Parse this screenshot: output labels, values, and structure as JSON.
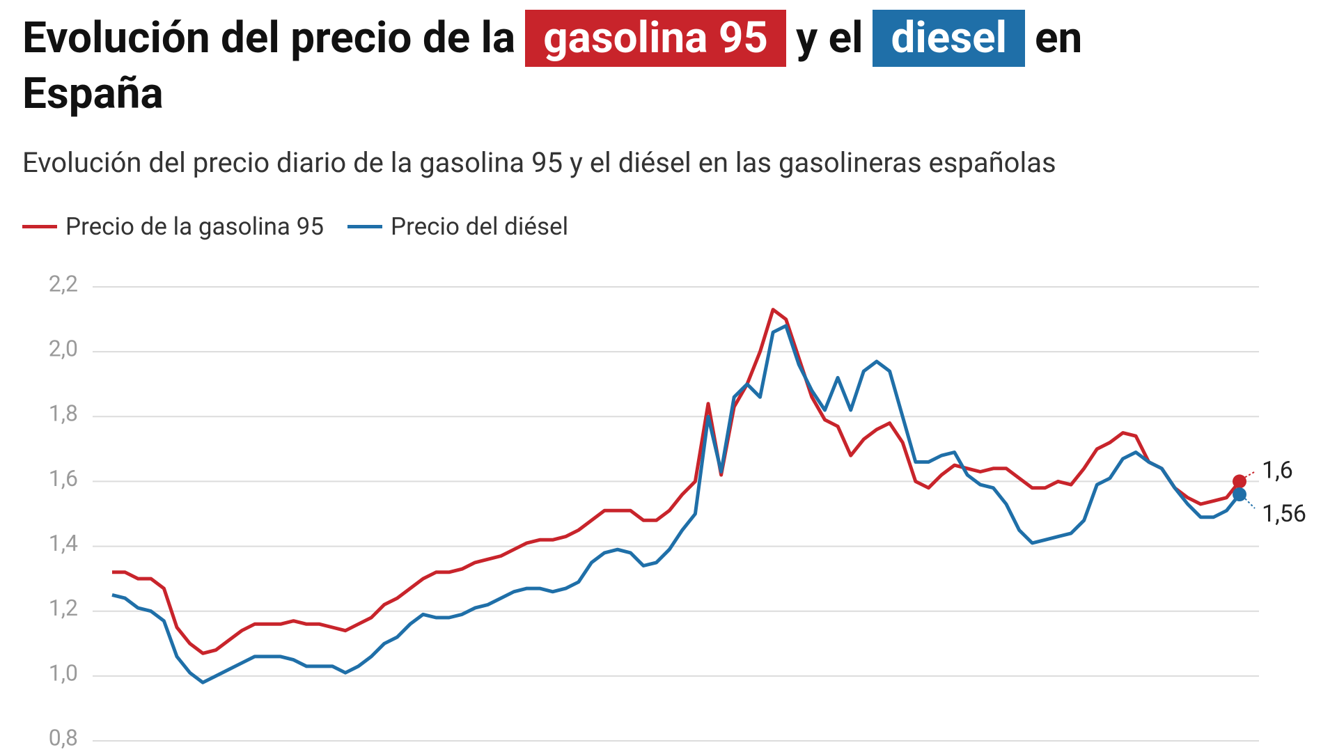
{
  "chart_data": {
    "type": "line",
    "title": [
      "Evolución del precio de la",
      "gasolina 95",
      "y el",
      "diesel",
      "en",
      "España"
    ],
    "subtitle": "Evolución del precio diario de la gasolina 95 y el diésel en las gasolineras españolas",
    "categories": [
      null,
      null,
      null,
      null,
      null,
      null,
      null,
      null,
      null,
      null,
      null,
      null,
      null,
      null,
      null,
      null,
      null,
      null,
      null,
      null,
      null,
      null,
      null,
      null,
      null,
      null,
      null,
      null,
      null,
      null,
      null,
      null,
      null,
      null,
      null,
      null,
      null,
      null,
      null,
      null,
      null,
      null,
      null,
      null,
      null,
      null,
      null,
      null,
      null,
      null,
      null,
      null,
      null,
      null,
      null,
      null,
      null,
      null,
      null,
      null,
      null,
      null,
      null,
      null,
      null,
      null,
      null,
      null,
      null,
      null,
      null,
      null,
      null,
      null,
      null,
      null,
      null,
      null,
      null,
      null,
      null,
      null,
      null,
      null,
      null,
      null,
      null,
      null
    ],
    "series": [
      {
        "name": "Precio de la gasolina 95",
        "color": "#c8242b",
        "values": [
          1.32,
          1.32,
          1.3,
          1.3,
          1.27,
          1.15,
          1.1,
          1.07,
          1.08,
          1.11,
          1.14,
          1.16,
          1.16,
          1.16,
          1.17,
          1.16,
          1.16,
          1.15,
          1.14,
          1.16,
          1.18,
          1.22,
          1.24,
          1.27,
          1.3,
          1.32,
          1.32,
          1.33,
          1.35,
          1.36,
          1.37,
          1.39,
          1.41,
          1.42,
          1.42,
          1.43,
          1.45,
          1.48,
          1.51,
          1.51,
          1.51,
          1.48,
          1.48,
          1.51,
          1.56,
          1.6,
          1.84,
          1.62,
          1.83,
          1.9,
          2.0,
          2.13,
          2.1,
          1.98,
          1.86,
          1.79,
          1.77,
          1.68,
          1.73,
          1.76,
          1.78,
          1.72,
          1.6,
          1.58,
          1.62,
          1.65,
          1.64,
          1.63,
          1.64,
          1.64,
          1.61,
          1.58,
          1.58,
          1.6,
          1.59,
          1.64,
          1.7,
          1.72,
          1.75,
          1.74,
          1.66,
          1.64,
          1.58,
          1.55,
          1.53,
          1.54,
          1.55,
          1.6
        ],
        "end_label": {
          "value": 1.6,
          "label": "1,6"
        }
      },
      {
        "name": "Precio del diésel",
        "color": "#1f6fa8",
        "values": [
          1.25,
          1.24,
          1.21,
          1.2,
          1.17,
          1.06,
          1.01,
          0.98,
          1.0,
          1.02,
          1.04,
          1.06,
          1.06,
          1.06,
          1.05,
          1.03,
          1.03,
          1.03,
          1.01,
          1.03,
          1.06,
          1.1,
          1.12,
          1.16,
          1.19,
          1.18,
          1.18,
          1.19,
          1.21,
          1.22,
          1.24,
          1.26,
          1.27,
          1.27,
          1.26,
          1.27,
          1.29,
          1.35,
          1.38,
          1.39,
          1.38,
          1.34,
          1.35,
          1.39,
          1.45,
          1.5,
          1.8,
          1.63,
          1.86,
          1.9,
          1.86,
          2.06,
          2.08,
          1.96,
          1.88,
          1.82,
          1.92,
          1.82,
          1.94,
          1.97,
          1.94,
          1.8,
          1.66,
          1.66,
          1.68,
          1.69,
          1.62,
          1.59,
          1.58,
          1.53,
          1.45,
          1.41,
          1.42,
          1.43,
          1.44,
          1.48,
          1.59,
          1.61,
          1.67,
          1.69,
          1.66,
          1.64,
          1.58,
          1.53,
          1.49,
          1.49,
          1.51,
          1.56
        ],
        "end_label": {
          "value": 1.56,
          "label": "1,56"
        }
      }
    ],
    "ylim": [
      0.8,
      2.2
    ],
    "yticks": [
      {
        "value": 0.8,
        "label": "0,8"
      },
      {
        "value": 1.0,
        "label": "1,0"
      },
      {
        "value": 1.2,
        "label": "1,2"
      },
      {
        "value": 1.4,
        "label": "1,4"
      },
      {
        "value": 1.6,
        "label": "1,6"
      },
      {
        "value": 1.8,
        "label": "1,8"
      },
      {
        "value": 2.0,
        "label": "2,0"
      },
      {
        "value": 2.2,
        "label": "2,2"
      }
    ],
    "grid": true,
    "legend": "top-left"
  }
}
